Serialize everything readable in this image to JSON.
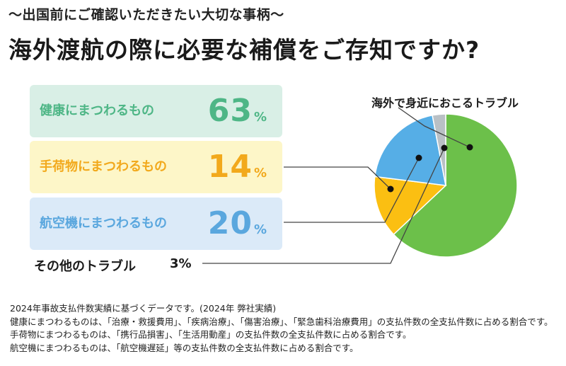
{
  "header": {
    "subtitle": "〜出国前にご確認いただきたい大切な事柄〜",
    "title": "海外渡航の際に必要な補償をご存知ですか?"
  },
  "chart_data": {
    "type": "pie",
    "title": "海外で身近におこるトラブル",
    "slices": [
      {
        "label": "健康にまつわるもの",
        "value": 63,
        "unit": "%",
        "color": "#6cc04a",
        "card_bg": "#d9efe6",
        "text_color": "#4eb686"
      },
      {
        "label": "手荷物にまつわるもの",
        "value": 14,
        "unit": "%",
        "color": "#fbbf12",
        "card_bg": "#fdf6c8",
        "text_color": "#f2a91c"
      },
      {
        "label": "航空機にまつわるもの",
        "value": 20,
        "unit": "%",
        "color": "#56aee6",
        "card_bg": "#dbeaf8",
        "text_color": "#5aa7de"
      },
      {
        "label": "その他のトラブル",
        "value": 3,
        "unit": "%",
        "color": "#b9c0c5"
      }
    ]
  },
  "other_pct_text": "3%",
  "notes": [
    "2024年事故支払件数実績に基づくデータです。(2024年 弊社実績)",
    "健康にまつわるものは、「治療・救援費用」、「疾病治療」、「傷害治療」、「緊急歯科治療費用」の支払件数の全支払件数に占める割合です。",
    "手荷物にまつわるものは、「携行品損害」、「生活用動産」の支払件数の全支払件数に占める割合です。",
    "航空機にまつわるものは、「航空機遅延」等の支払件数の全支払件数に占める割合です。"
  ]
}
